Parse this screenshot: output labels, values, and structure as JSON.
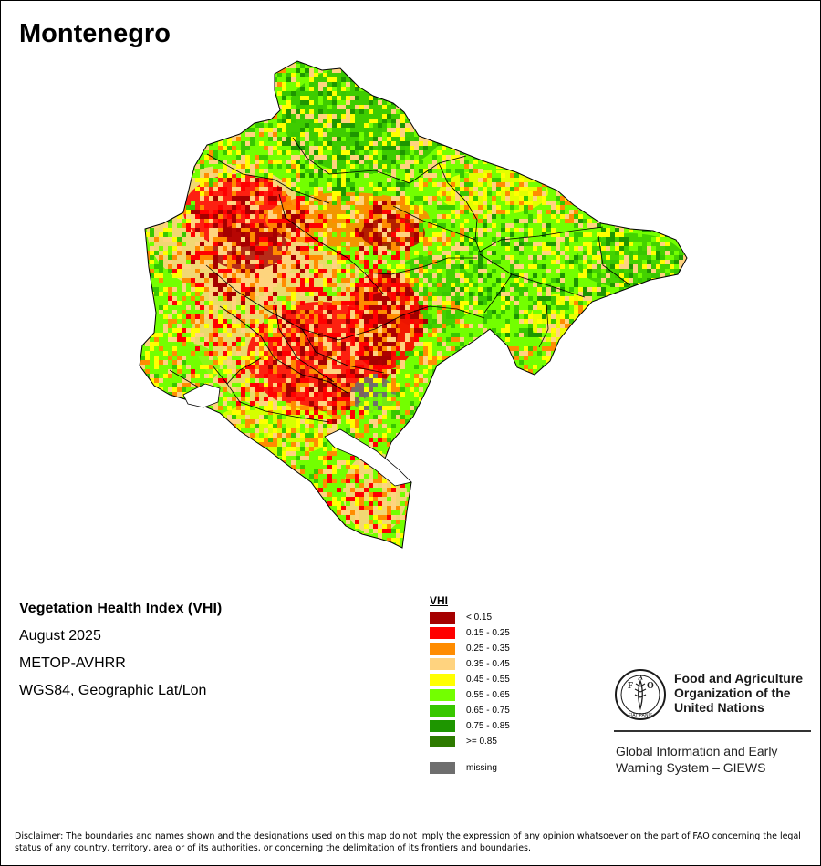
{
  "map": {
    "title": "Montenegro",
    "info": {
      "product": "Vegetation Health Index (VHI)",
      "period": "August 2025",
      "sensor": "METOP-AVHRR",
      "projection": "WGS84, Geographic Lat/Lon"
    },
    "legend": {
      "title": "VHI",
      "classes": [
        {
          "label": "< 0.15",
          "color": "#a50000"
        },
        {
          "label": "0.15 - 0.25",
          "color": "#ff0000"
        },
        {
          "label": "0.25 - 0.35",
          "color": "#ff8c00"
        },
        {
          "label": "0.35 - 0.45",
          "color": "#ffd37f"
        },
        {
          "label": "0.45 - 0.55",
          "color": "#ffff00"
        },
        {
          "label": "0.55 - 0.65",
          "color": "#73ff00"
        },
        {
          "label": "0.65 - 0.75",
          "color": "#38c700"
        },
        {
          "label": "0.75 - 0.85",
          "color": "#1e9600"
        },
        {
          "label": ">= 0.85",
          "color": "#2d7a00"
        }
      ],
      "missing": {
        "label": "missing",
        "color": "#6e6e6e"
      }
    },
    "organization": {
      "name_lines": [
        "Food and Agriculture",
        "Organization of the",
        "United Nations"
      ],
      "emblem_letters": [
        "F",
        "A",
        "O"
      ],
      "emblem_motto": "FIAT PANIS",
      "program_lines": [
        "Global Information and Early",
        "Warning System – GIEWS"
      ]
    },
    "disclaimer": "Disclaimer: The boundaries and names shown and the designations used on this map do not imply the expression of any opinion whatsoever on the part of FAO concerning the legal status of any country, territory, area or of its authorities, or concerning the delimitation of its frontiers and boundaries."
  }
}
